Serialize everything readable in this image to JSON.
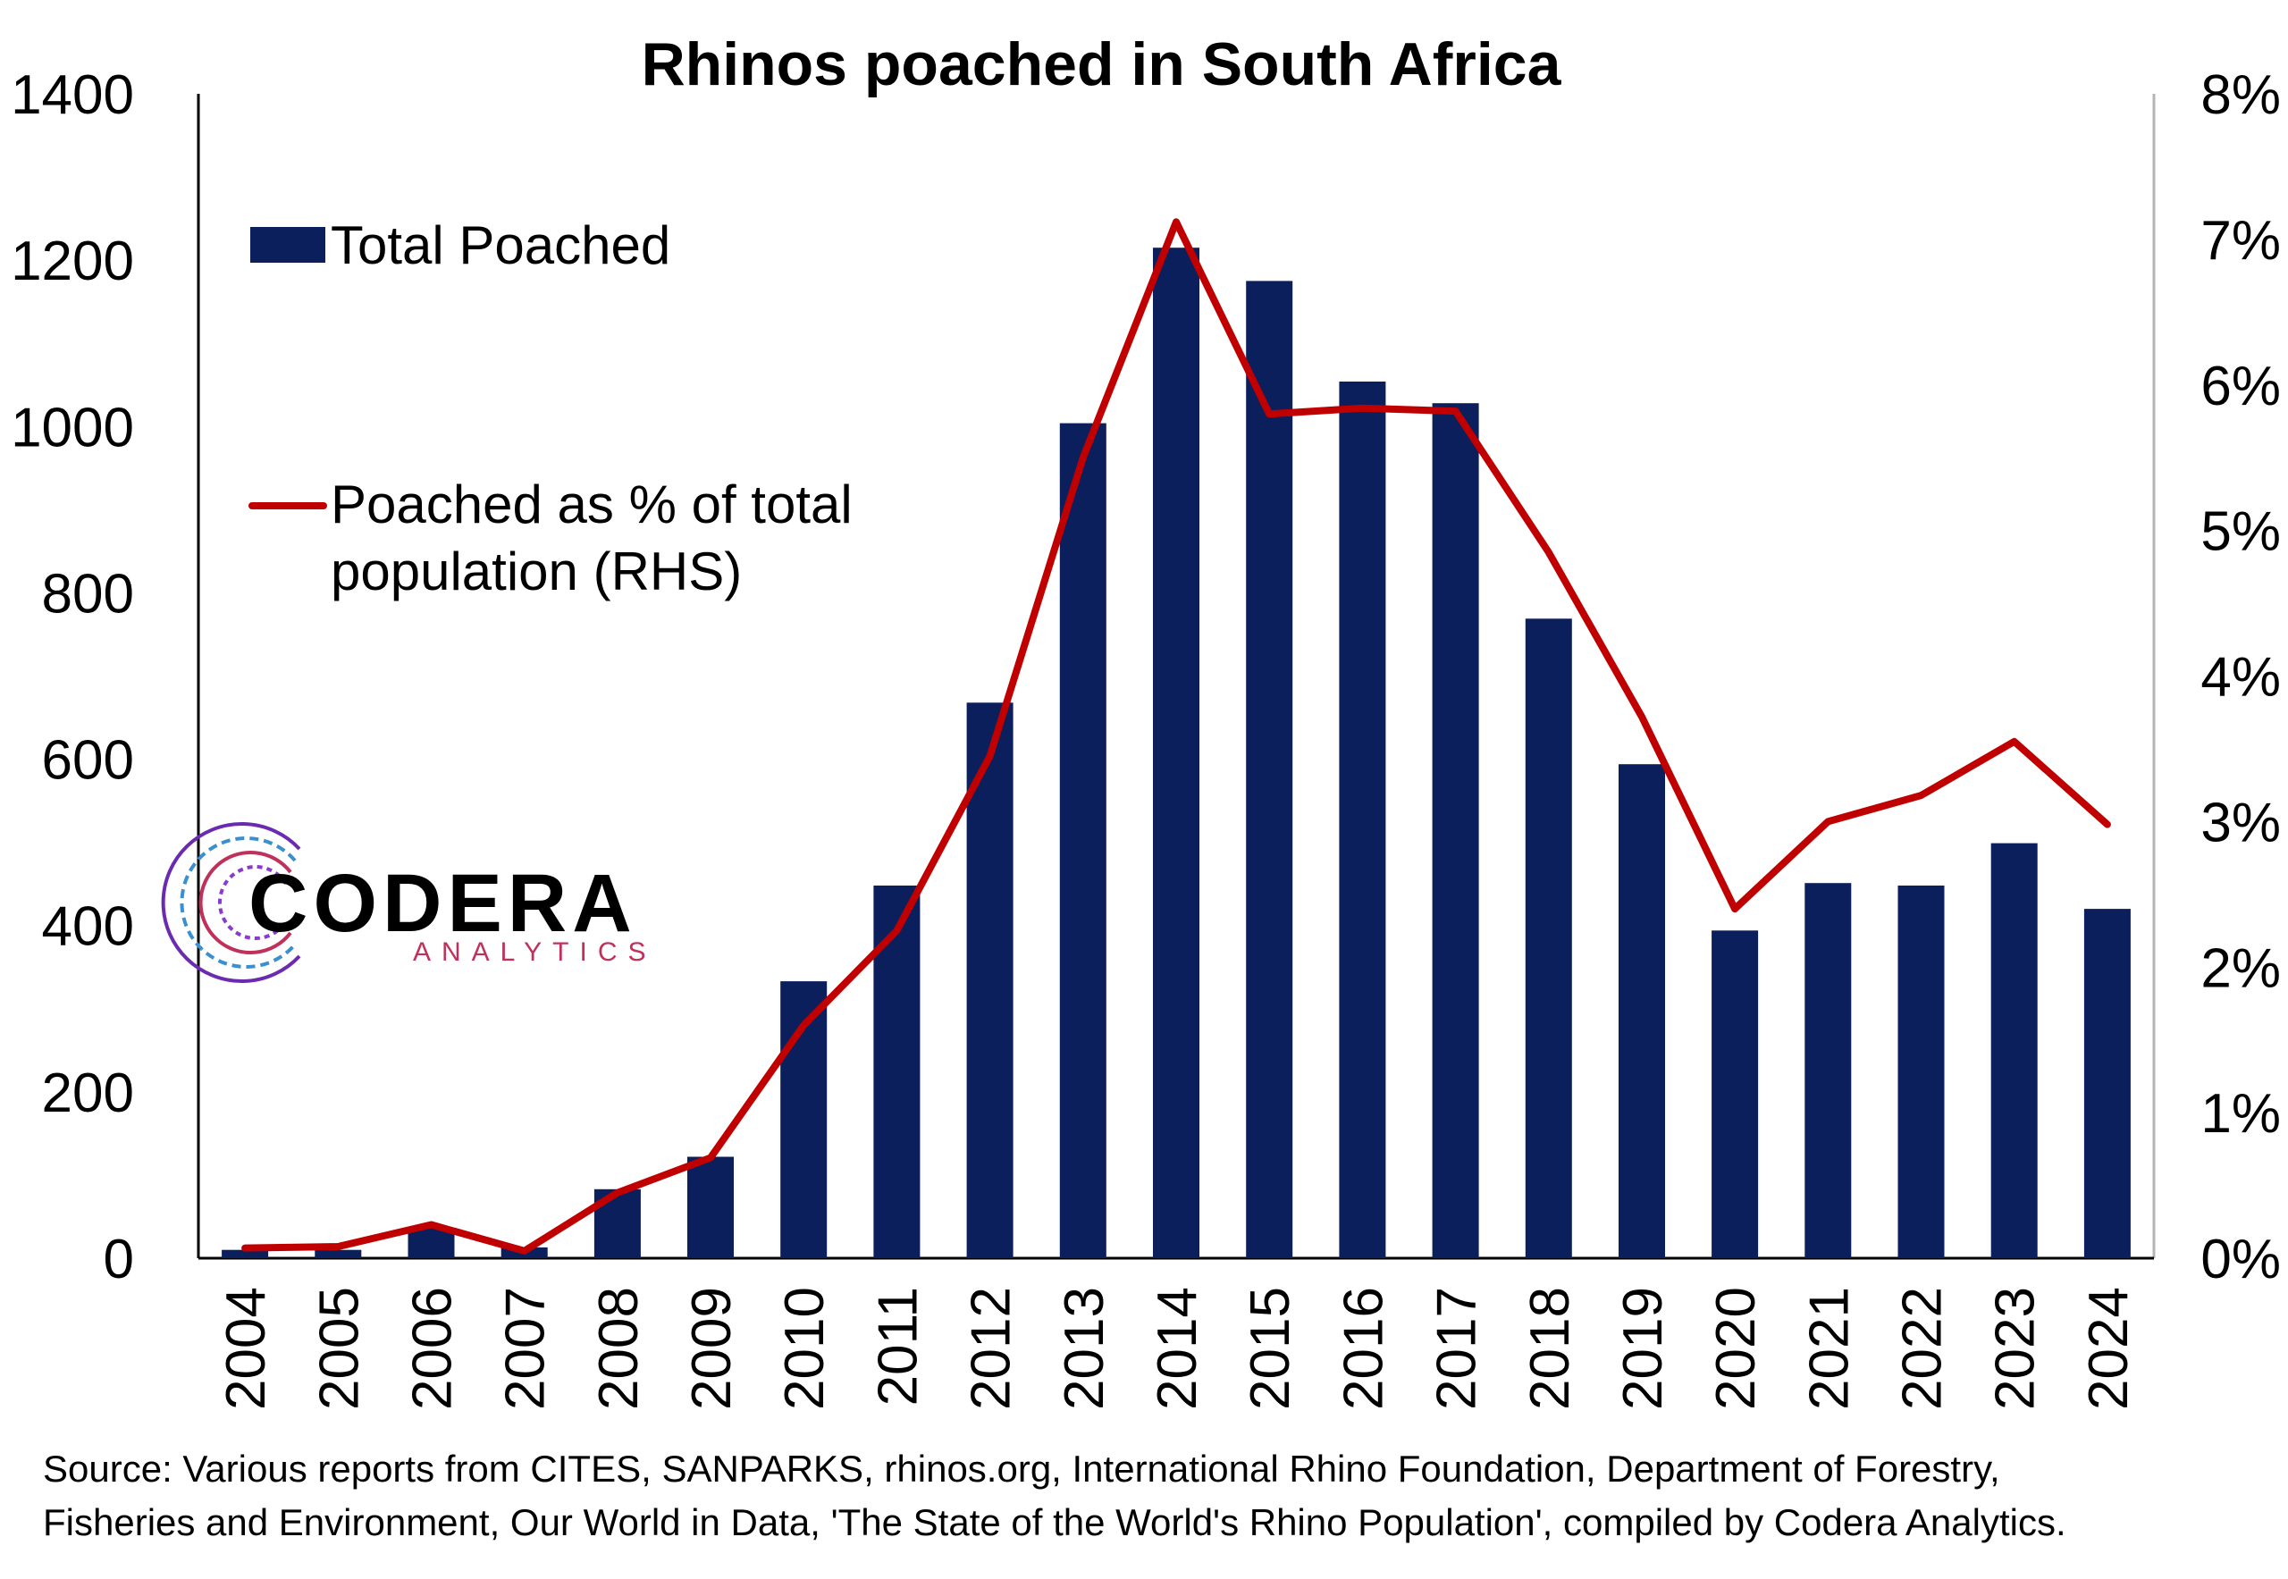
{
  "chart_data": {
    "type": "bar",
    "title": "Rhinos poached in South Africa",
    "categories": [
      "2004",
      "2005",
      "2006",
      "2007",
      "2008",
      "2009",
      "2010",
      "2011",
      "2012",
      "2013",
      "2014",
      "2015",
      "2016",
      "2017",
      "2018",
      "2019",
      "2020",
      "2021",
      "2022",
      "2023",
      "2024"
    ],
    "series": [
      {
        "name": "Total Poached",
        "type": "bar",
        "axis": "left",
        "color": "#0b1f5c",
        "values": [
          10,
          10,
          36,
          13,
          83,
          122,
          333,
          448,
          668,
          1004,
          1215,
          1175,
          1054,
          1028,
          769,
          594,
          394,
          451,
          448,
          499,
          420
        ]
      },
      {
        "name": "Poached as % of total population (RHS)",
        "legend_lines": [
          "Poached as % of total",
          "population (RHS)"
        ],
        "type": "line",
        "axis": "right",
        "color": "#c00000",
        "values": [
          0.07,
          0.08,
          0.23,
          0.05,
          0.45,
          0.69,
          1.6,
          2.25,
          3.45,
          5.5,
          7.12,
          5.8,
          5.84,
          5.82,
          4.85,
          3.72,
          2.4,
          3.0,
          3.18,
          3.55,
          2.98
        ]
      }
    ],
    "ylim_left": [
      0,
      1400
    ],
    "yticks_left": [
      "0",
      "200",
      "400",
      "600",
      "800",
      "1000",
      "1200",
      "1400"
    ],
    "ylim_right": [
      0,
      8
    ],
    "yticks_right": [
      "0%",
      "1%",
      "2%",
      "3%",
      "4%",
      "5%",
      "6%",
      "7%",
      "8%"
    ],
    "grid": false,
    "legend_position": "top-left"
  },
  "source_lines": [
    "Source: Various reports from CITES, SANPARKS, rhinos.org, International Rhino Foundation, Department of Forestry,",
    "Fisheries and Environment, Our World in Data, 'The State of the World's Rhino Population', compiled by Codera Analytics."
  ],
  "logo": {
    "name": "CODERA",
    "subtitle": "ANALYTICS"
  }
}
